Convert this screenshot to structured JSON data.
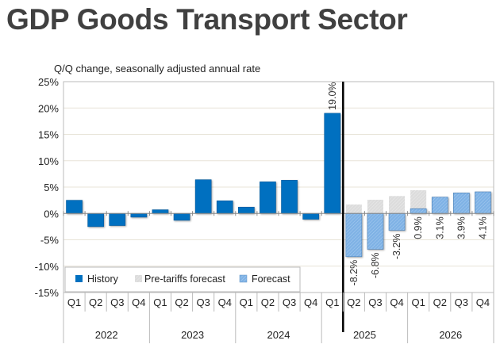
{
  "title": "GDP Goods Transport Sector",
  "chart_data": {
    "type": "bar",
    "title": "GDP Goods Transport Sector",
    "ylabel": "Q/Q change, seasonally adjusted annual rate",
    "ylim": [
      -15,
      25
    ],
    "yticks": [
      "-15%",
      "-10%",
      "-5%",
      "0%",
      "5%",
      "10%",
      "15%",
      "20%",
      "25%"
    ],
    "grid": true,
    "legend_placement": "bottom-left",
    "quarters": [
      "Q1",
      "Q2",
      "Q3",
      "Q4",
      "Q1",
      "Q2",
      "Q3",
      "Q4",
      "Q1",
      "Q2",
      "Q3",
      "Q4",
      "Q1",
      "Q2",
      "Q3",
      "Q4",
      "Q1",
      "Q2",
      "Q3",
      "Q4"
    ],
    "years": [
      "2022",
      "2023",
      "2024",
      "2025",
      "2026"
    ],
    "series": [
      {
        "name": "History",
        "color": "#0070c0",
        "values": [
          2.5,
          -2.5,
          -2.3,
          -0.7,
          0.7,
          -1.3,
          6.4,
          2.4,
          1.2,
          6.0,
          6.3,
          -1.1,
          19.0,
          null,
          null,
          null,
          null,
          null,
          null,
          null
        ]
      },
      {
        "name": "Pre-tariffs forecast",
        "color": "#d9d9d9",
        "values": [
          null,
          null,
          null,
          null,
          null,
          null,
          null,
          null,
          null,
          null,
          null,
          null,
          null,
          1.7,
          2.6,
          3.3,
          4.4,
          null,
          null,
          null
        ]
      },
      {
        "name": "Forecast",
        "color": "#7fb2e5",
        "values": [
          null,
          null,
          null,
          null,
          null,
          null,
          null,
          null,
          null,
          null,
          null,
          null,
          null,
          -8.2,
          -6.8,
          -3.2,
          0.9,
          3.1,
          3.9,
          4.1
        ]
      }
    ],
    "data_labels": {
      "12": "19.0%",
      "13": "-8.2%",
      "14": "-6.8%",
      "15": "-3.2%",
      "16": "0.9%",
      "17": "3.1%",
      "18": "3.9%",
      "19": "4.1%"
    }
  }
}
